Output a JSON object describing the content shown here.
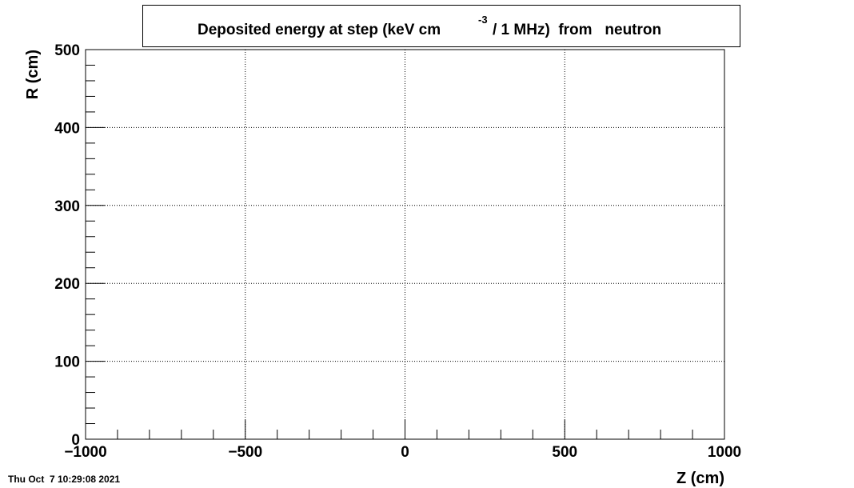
{
  "chart_data": {
    "type": "hist2d",
    "title_parts": [
      "Deposited energy at step (keV cm",
      "-3",
      "/ 1 MHz)  from   neutron"
    ],
    "xlabel": "Z (cm)",
    "ylabel": "R (cm)",
    "xlim": [
      -1000,
      1000
    ],
    "ylim": [
      0,
      500
    ],
    "xticks": [
      {
        "value": -1000,
        "label": "−1000"
      },
      {
        "value": -500,
        "label": "−500"
      },
      0,
      500,
      1000
    ],
    "yticks": [
      0,
      100,
      200,
      300,
      400,
      500
    ],
    "xminorticks": [
      -900,
      -800,
      -700,
      -600,
      -400,
      -300,
      -200,
      -100,
      100,
      200,
      300,
      400,
      600,
      700,
      800,
      900
    ],
    "yminorticks": [
      20,
      40,
      60,
      80,
      120,
      140,
      160,
      180,
      220,
      240,
      260,
      280,
      320,
      340,
      360,
      380,
      420,
      440,
      460,
      480
    ],
    "grid": true,
    "values": [],
    "datestamp": "Thu Oct  7 10:29:08 2021"
  }
}
